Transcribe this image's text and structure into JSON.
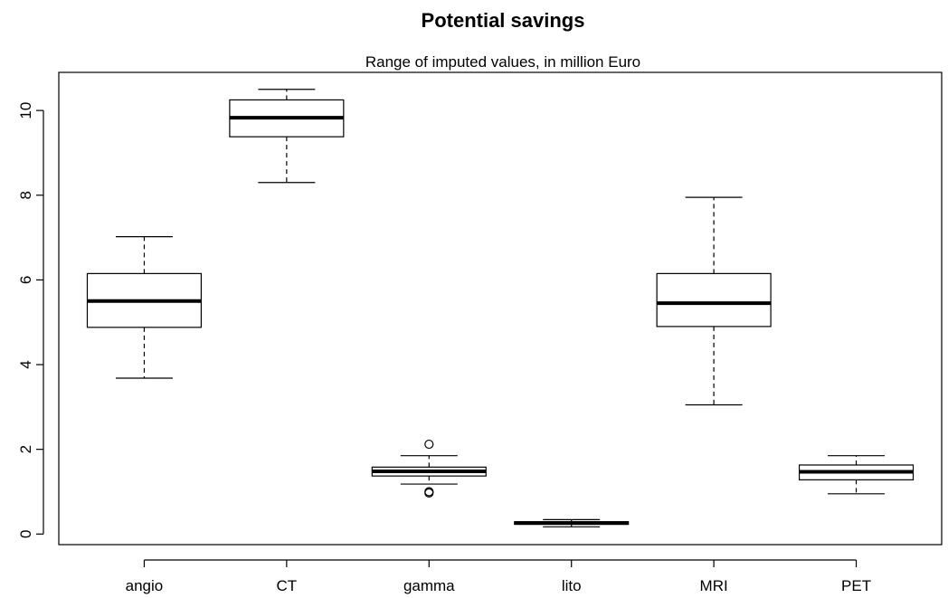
{
  "chart_data": {
    "type": "box",
    "title": "Potential savings",
    "subtitle": "Range of imputed values, in million Euro",
    "xlabel": "",
    "ylabel": "",
    "ylim": [
      -0.25,
      10.9
    ],
    "yticks": [
      0,
      2,
      4,
      6,
      8,
      10
    ],
    "grid": false,
    "categories": [
      "angio",
      "CT",
      "gamma",
      "lito",
      "MRI",
      "PET"
    ],
    "boxes": [
      {
        "name": "angio",
        "whisker_low": 3.68,
        "q1": 4.88,
        "median": 5.5,
        "q3": 6.15,
        "whisker_high": 7.02,
        "outliers": []
      },
      {
        "name": "CT",
        "whisker_low": 8.3,
        "q1": 9.38,
        "median": 9.83,
        "q3": 10.25,
        "whisker_high": 10.5,
        "outliers": []
      },
      {
        "name": "gamma",
        "whisker_low": 1.18,
        "q1": 1.37,
        "median": 1.48,
        "q3": 1.58,
        "whisker_high": 1.85,
        "outliers": [
          2.12,
          0.97,
          1.0
        ]
      },
      {
        "name": "lito",
        "whisker_low": 0.17,
        "q1": 0.23,
        "median": 0.26,
        "q3": 0.29,
        "whisker_high": 0.34,
        "outliers": []
      },
      {
        "name": "MRI",
        "whisker_low": 3.05,
        "q1": 4.9,
        "median": 5.45,
        "q3": 6.15,
        "whisker_high": 7.95,
        "outliers": []
      },
      {
        "name": "PET",
        "whisker_low": 0.95,
        "q1": 1.28,
        "median": 1.47,
        "q3": 1.63,
        "whisker_high": 1.85,
        "outliers": []
      }
    ]
  }
}
